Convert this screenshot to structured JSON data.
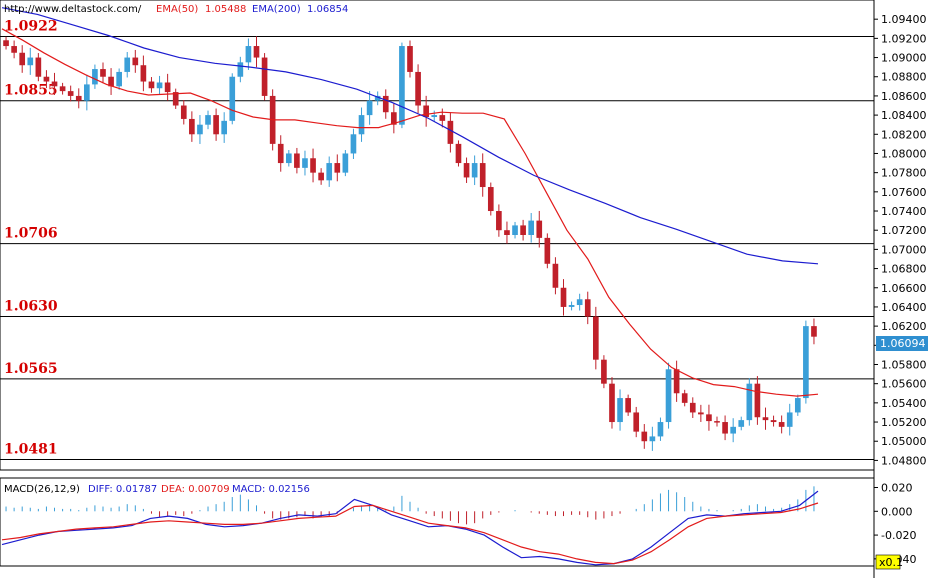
{
  "header": {
    "url": "http://www.deltastock.com/",
    "ema50_label": "EMA(50)",
    "ema50_value": "1.05488",
    "ema200_label": "EMA(200)",
    "ema200_value": "1.06854"
  },
  "macd_header": {
    "title": "MACD(26,12,9)",
    "diff": "DIFF: 0.01787",
    "dea": "DEA: 0.00709",
    "macd": "MACD: 0.02156",
    "scale_badge": "x0.1"
  },
  "colors": {
    "bull": "#3a9fd8",
    "bear": "#c0202a",
    "ema50": "#e21b1b",
    "ema200": "#1c1ccf",
    "diff": "#1c1ccf",
    "dea": "#e21b1b",
    "level_text": "#d40000",
    "price_badge": "#2f8fd0"
  },
  "chart_data": [
    {
      "type": "candlestick",
      "title": "",
      "y_axis_ticks": [
        "1.09400",
        "1.09200",
        "1.09000",
        "1.08800",
        "1.08600",
        "1.08400",
        "1.08200",
        "1.08000",
        "1.07800",
        "1.07600",
        "1.07400",
        "1.07200",
        "1.07000",
        "1.06800",
        "1.06600",
        "1.06400",
        "1.06200",
        "1.06000",
        "1.05800",
        "1.05600",
        "1.05400",
        "1.05200",
        "1.05000",
        "1.04800"
      ],
      "ylim": [
        1.047,
        1.096
      ],
      "current_price": "1.06094",
      "levels": [
        "1.0922",
        "1.0855",
        "1.0706",
        "1.0630",
        "1.0565",
        "1.0481"
      ],
      "closes": [
        1.0912,
        1.0905,
        1.0892,
        1.09,
        1.088,
        1.0875,
        1.087,
        1.0865,
        1.086,
        1.0855,
        1.0872,
        1.0888,
        1.088,
        1.087,
        1.0885,
        1.09,
        1.0892,
        1.0875,
        1.0868,
        1.0874,
        1.0864,
        1.085,
        1.0836,
        1.082,
        1.083,
        1.084,
        1.082,
        1.0834,
        1.088,
        1.0895,
        1.0912,
        1.09,
        1.086,
        1.081,
        1.079,
        1.08,
        1.0785,
        1.0795,
        1.078,
        1.0772,
        1.079,
        1.078,
        1.08,
        1.082,
        1.084,
        1.0855,
        1.086,
        1.0843,
        1.083,
        1.0912,
        1.0885,
        1.085,
        1.0838,
        1.084,
        1.0834,
        1.081,
        1.079,
        1.0775,
        1.079,
        1.0765,
        1.074,
        1.072,
        1.0715,
        1.0725,
        1.0715,
        1.073,
        1.0712,
        1.0685,
        1.066,
        1.064,
        1.0642,
        1.0648,
        1.063,
        1.0585,
        1.056,
        1.052,
        1.0545,
        1.053,
        1.051,
        1.05,
        1.0505,
        1.052,
        1.0575,
        1.055,
        1.054,
        1.053,
        1.0528,
        1.0521,
        1.052,
        1.0508,
        1.0515,
        1.0522,
        1.056,
        1.0525,
        1.0522,
        1.052,
        1.0515,
        1.053,
        1.0545,
        1.062,
        1.0609
      ],
      "ema50": [
        1.093,
        1.0918,
        1.0905,
        1.0893,
        1.0882,
        1.0872,
        1.0865,
        1.0861,
        1.0862,
        1.0863,
        1.0855,
        1.0845,
        1.0838,
        1.0835,
        1.0835,
        1.0832,
        1.0829,
        1.0827,
        1.0827,
        1.0833,
        1.084,
        1.0843,
        1.0842,
        1.0842,
        1.0836,
        1.08,
        1.076,
        1.072,
        1.069,
        1.065,
        1.0622,
        1.0596,
        1.0577,
        1.0566,
        1.0559,
        1.0557,
        1.0552,
        1.0549,
        1.0547,
        1.0549
      ],
      "ema200": [
        1.0952,
        1.0945,
        1.0934,
        1.0923,
        1.091,
        1.09,
        1.0894,
        1.089,
        1.0885,
        1.0877,
        1.0867,
        1.0853,
        1.0837,
        1.0817,
        1.0796,
        1.0777,
        1.0762,
        1.0748,
        1.0733,
        1.0721,
        1.0708,
        1.0695,
        1.0688,
        1.0685
      ]
    },
    {
      "type": "macd",
      "title": "MACD(26,12,9)",
      "y_axis_ticks": [
        "0.020",
        "0.000",
        "-0.020",
        "-0.040"
      ],
      "ylim": [
        -0.046,
        0.028
      ],
      "hist": [
        0.004,
        0.003,
        0.004,
        0.003,
        0.002,
        0.004,
        0.003,
        0.002,
        0.002,
        0.001,
        0.003,
        0.005,
        0.004,
        0.003,
        0.004,
        0.006,
        0.005,
        0.002,
        -0.002,
        -0.005,
        -0.004,
        -0.003,
        -0.004,
        -0.002,
        0.001,
        0.004,
        0.006,
        0.008,
        0.012,
        0.014,
        0.01,
        0.005,
        -0.002,
        -0.006,
        -0.007,
        -0.006,
        -0.005,
        -0.004,
        -0.006,
        -0.005,
        -0.004,
        -0.002,
        0.0,
        0.003,
        0.005,
        0.006,
        0.004,
        0.001,
        0.004,
        0.013,
        0.008,
        0.003,
        -0.002,
        -0.004,
        -0.006,
        -0.008,
        -0.01,
        -0.011,
        -0.01,
        -0.006,
        -0.003,
        -0.001,
        0.0,
        0.001,
        0.0,
        -0.001,
        -0.002,
        -0.003,
        -0.004,
        -0.004,
        -0.003,
        -0.003,
        -0.005,
        -0.007,
        -0.006,
        -0.004,
        -0.002,
        0.0,
        0.002,
        0.006,
        0.01,
        0.015,
        0.018,
        0.016,
        0.012,
        0.008,
        0.004,
        0.002,
        0.001,
        0.0,
        0.001,
        0.002,
        0.005,
        0.006,
        0.004,
        0.002,
        0.003,
        0.006,
        0.01,
        0.018,
        0.021
      ],
      "diff": [
        -0.028,
        -0.024,
        -0.02,
        -0.017,
        -0.016,
        -0.015,
        -0.014,
        -0.012,
        -0.006,
        -0.004,
        -0.006,
        -0.011,
        -0.013,
        -0.012,
        -0.01,
        -0.006,
        -0.003,
        -0.004,
        -0.002,
        0.01,
        0.005,
        -0.003,
        -0.008,
        -0.013,
        -0.012,
        -0.015,
        -0.02,
        -0.03,
        -0.039,
        -0.038,
        -0.04,
        -0.043,
        -0.045,
        -0.044,
        -0.04,
        -0.03,
        -0.018,
        -0.006,
        -0.003,
        -0.004,
        -0.002,
        -0.001,
        0.0,
        0.005,
        0.017
      ],
      "dea": [
        -0.024,
        -0.022,
        -0.019,
        -0.017,
        -0.015,
        -0.014,
        -0.013,
        -0.011,
        -0.009,
        -0.008,
        -0.009,
        -0.01,
        -0.011,
        -0.011,
        -0.01,
        -0.008,
        -0.006,
        -0.005,
        -0.004,
        0.004,
        0.005,
        0.0,
        -0.005,
        -0.01,
        -0.012,
        -0.014,
        -0.018,
        -0.024,
        -0.03,
        -0.034,
        -0.036,
        -0.04,
        -0.043,
        -0.044,
        -0.041,
        -0.034,
        -0.024,
        -0.013,
        -0.006,
        -0.004,
        -0.003,
        -0.002,
        -0.001,
        0.002,
        0.007
      ]
    }
  ]
}
